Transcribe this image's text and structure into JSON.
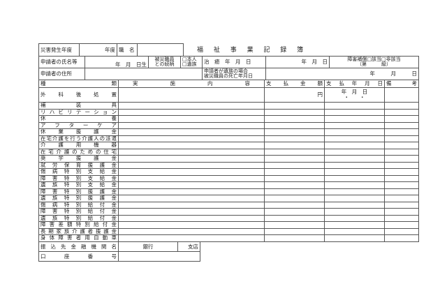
{
  "title": "福 祉 事 業 記 録 簿",
  "row1": {
    "disaster_year_label": "災害発生年度",
    "year_suffix": "年度",
    "job_label": "職　名"
  },
  "row2": {
    "name_label": "申請者の氏名等",
    "birth": "年　月　日生",
    "relation_label_1": "被災職員",
    "relation_label_2": "との続柄",
    "opt_self": "□本人",
    "opt_family": "□遺族",
    "cure_label": "治　癒　年　月　日",
    "cure_value": "年　月　日",
    "disability_1": "障害補償□該当□非該当",
    "disability_2": "（第　　　級）"
  },
  "row3": {
    "address_label": "申請者の住所",
    "death_label_1": "申請者が遺族の場合",
    "death_label_2": "被災職員の死亡年月日",
    "death_value": "年　　　月　　　日"
  },
  "header": [
    "種類",
    "実施内容",
    "支払金額",
    "支払年月日",
    "備考"
  ],
  "first_row": {
    "type": "外科後処置",
    "amount_unit": "円",
    "date": "年　月　日",
    "date_dots": "・　　・"
  },
  "types": [
    "補装具",
    "リハビリテーション",
    "休養",
    "アフターケア",
    "休業援護金",
    "在宅介護を行う介護人の派遣",
    "介護用機器",
    "在宅介護のための住宅",
    "奨学援護金",
    "就労保育援護金",
    "傷病特別支給金",
    "障害特別支給金",
    "遺族特別支給金",
    "障害特別援護金",
    "遺族特別援護金",
    "傷病特別給付金",
    "障害特別給付金",
    "遺族特別給付金",
    "障害差額特別給付金",
    "長期家族介護者援護金",
    "身体障害者用自動車"
  ],
  "bank": {
    "label": "振込先金融機関名",
    "bank_suffix": "銀行",
    "branch_suffix": "支店",
    "account_label": "口座番号"
  }
}
